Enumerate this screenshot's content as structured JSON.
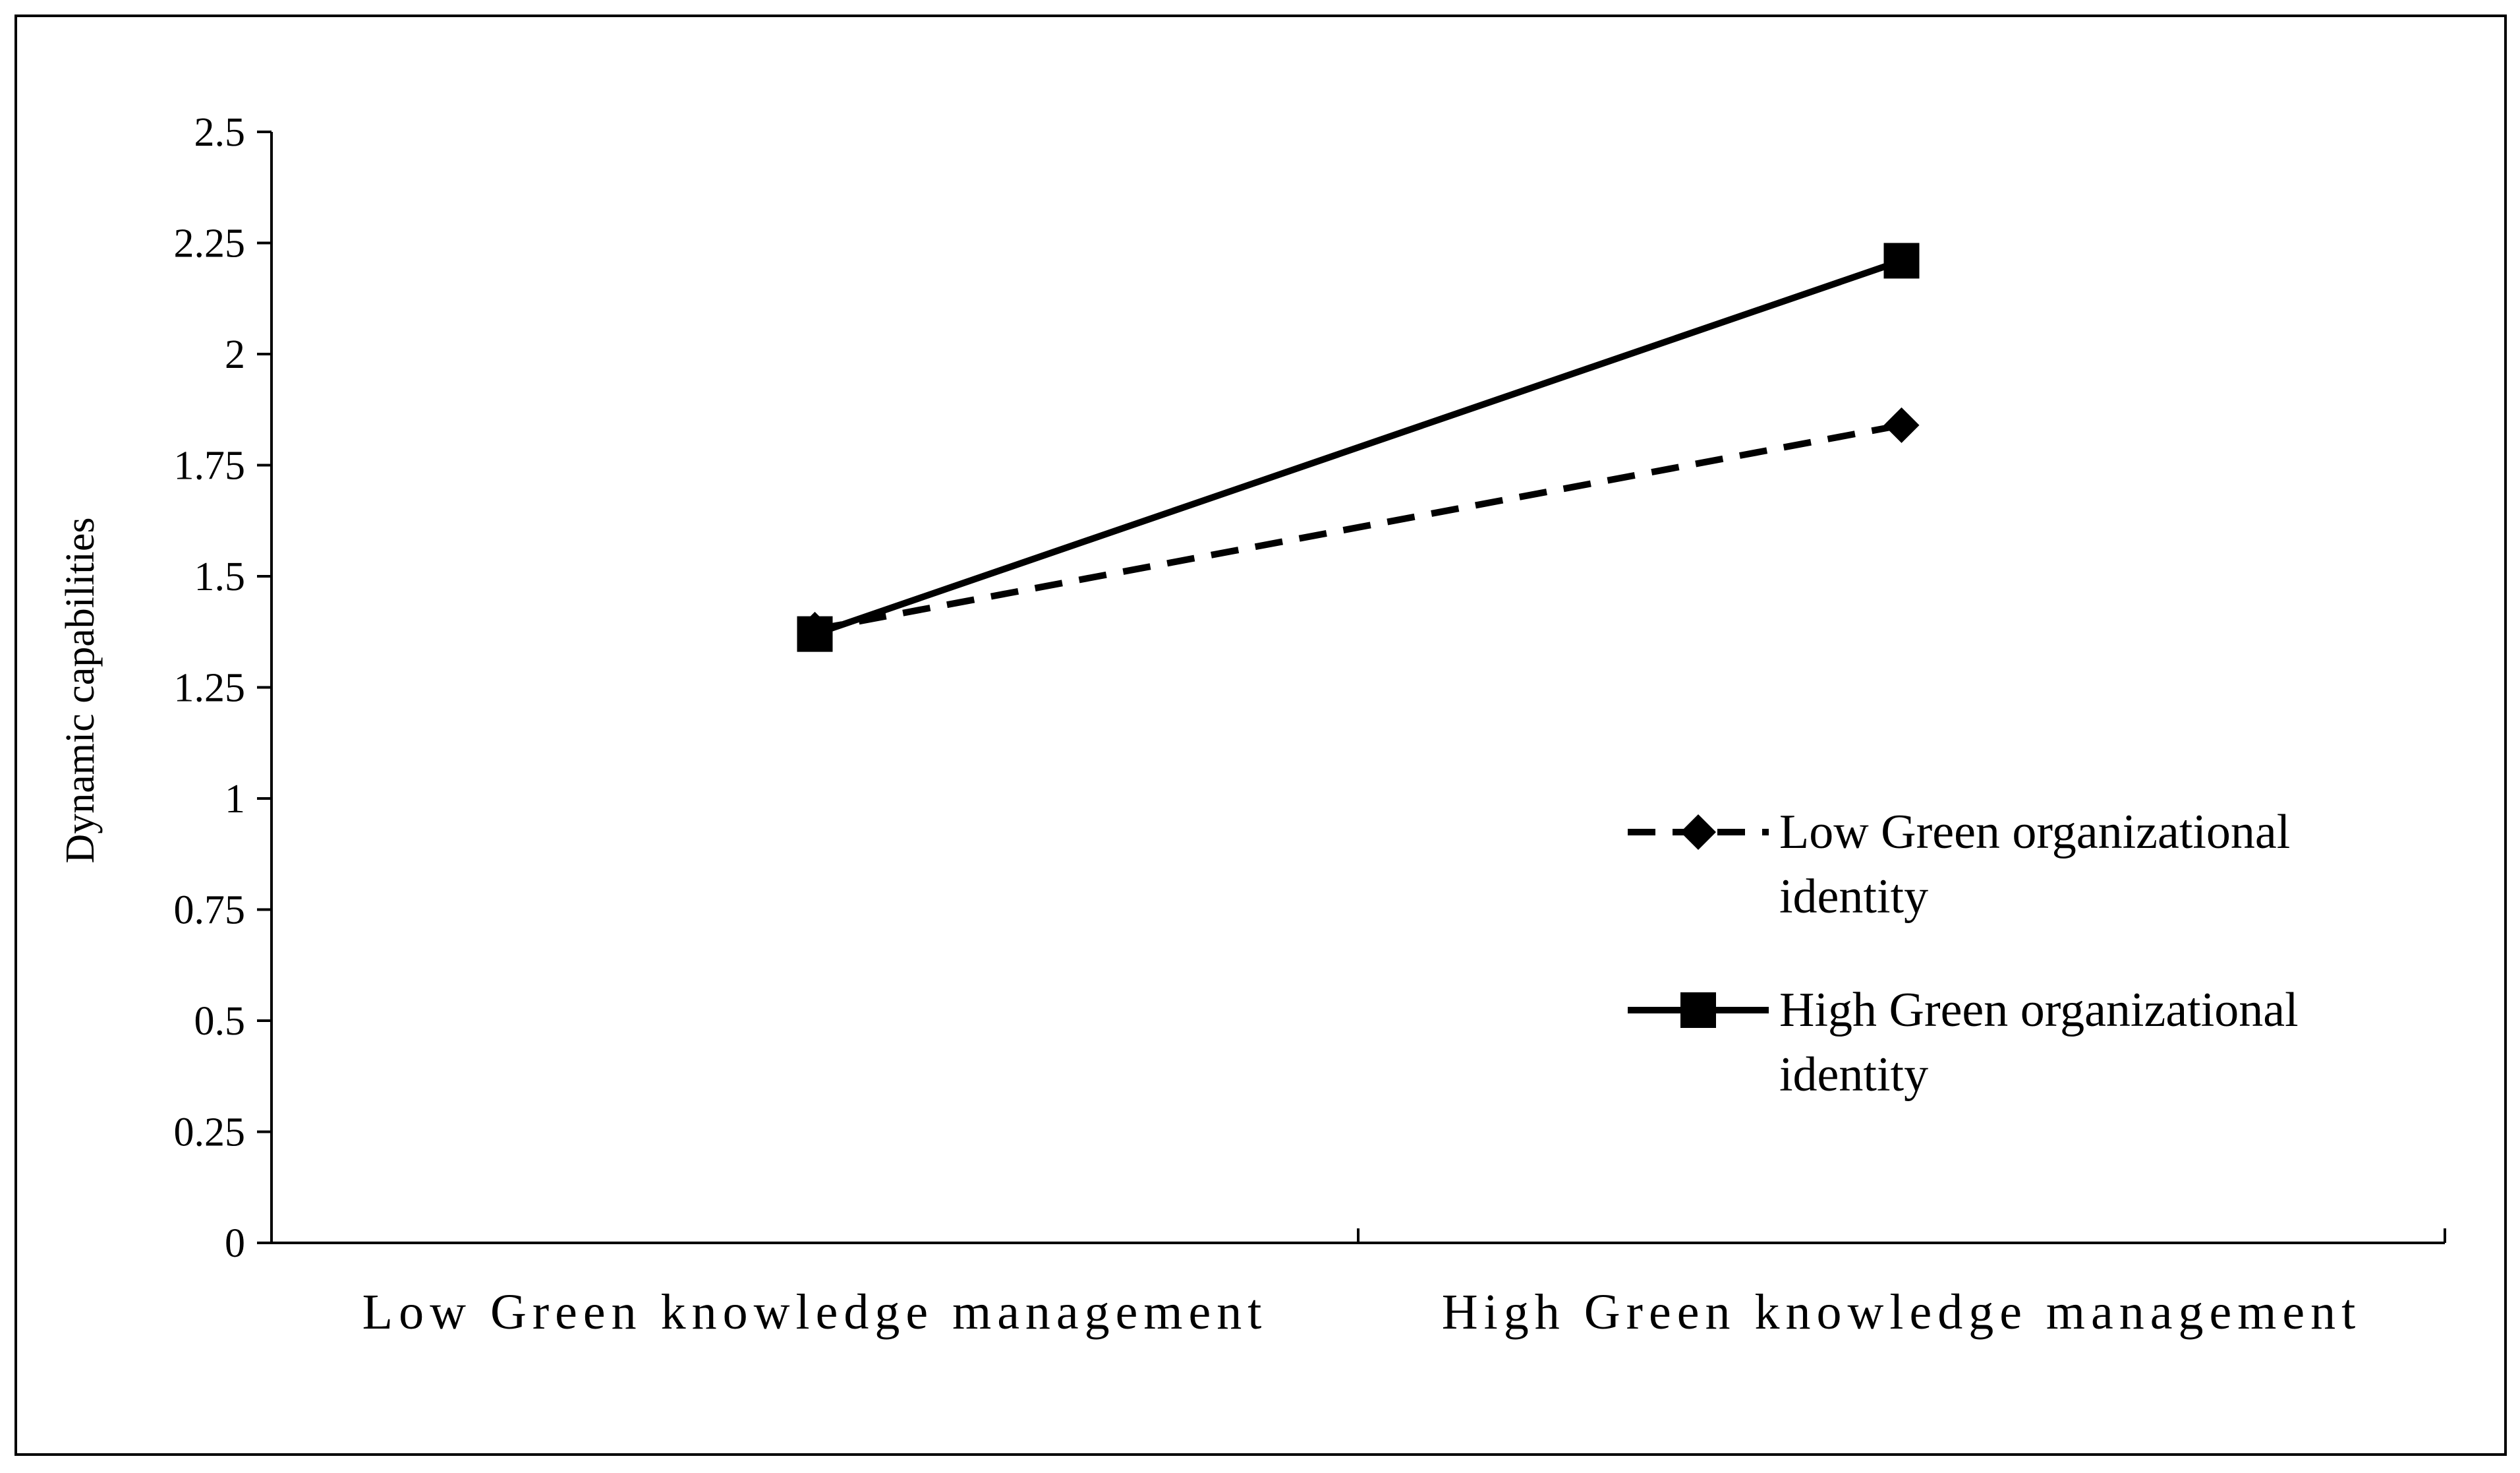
{
  "chart_data": {
    "type": "line",
    "categories": [
      "Low Green knowledge management",
      "High Green knowledge management"
    ],
    "ylabel": "Dynamic capabilities",
    "ylim": [
      0,
      2.5
    ],
    "yticks": [
      "0",
      "0.25",
      "0.5",
      "0.75",
      "1",
      "1.25",
      "1.5",
      "1.75",
      "2",
      "2.25",
      "2.5"
    ],
    "grid": false,
    "legend_position": "right",
    "series": [
      {
        "name_lines": [
          "Low Green organizational",
          "identity"
        ],
        "values": [
          1.38,
          1.84
        ],
        "line_style": "dashed",
        "marker": "diamond",
        "color": "#000000"
      },
      {
        "name_lines": [
          "High Green organizational",
          "identity"
        ],
        "values": [
          1.37,
          2.21
        ],
        "line_style": "solid",
        "marker": "square",
        "color": "#000000"
      }
    ]
  }
}
